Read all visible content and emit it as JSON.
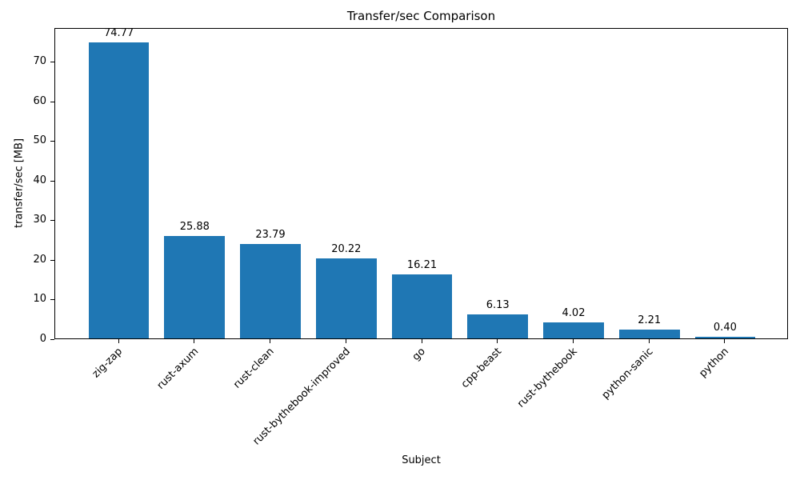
{
  "chart_data": {
    "type": "bar",
    "title": "Transfer/sec Comparison",
    "xlabel": "Subject",
    "ylabel": "transfer/sec [MB]",
    "categories": [
      "zig-zap",
      "rust-axum",
      "rust-clean",
      "rust-bythebook-improved",
      "go",
      "cpp-beast",
      "rust-bythebook",
      "python-sanic",
      "python"
    ],
    "values": [
      74.77,
      25.88,
      23.79,
      20.22,
      16.21,
      6.13,
      4.02,
      2.21,
      0.4
    ],
    "value_labels": [
      "74.77",
      "25.88",
      "23.79",
      "20.22",
      "16.21",
      "6.13",
      "4.02",
      "2.21",
      "0.40"
    ],
    "bar_color": "#1f77b4",
    "text_color": "#000000",
    "ylim": [
      0,
      78.5
    ],
    "yticks": [
      0,
      10,
      20,
      30,
      40,
      50,
      60,
      70
    ],
    "grid": false,
    "legend": null
  }
}
